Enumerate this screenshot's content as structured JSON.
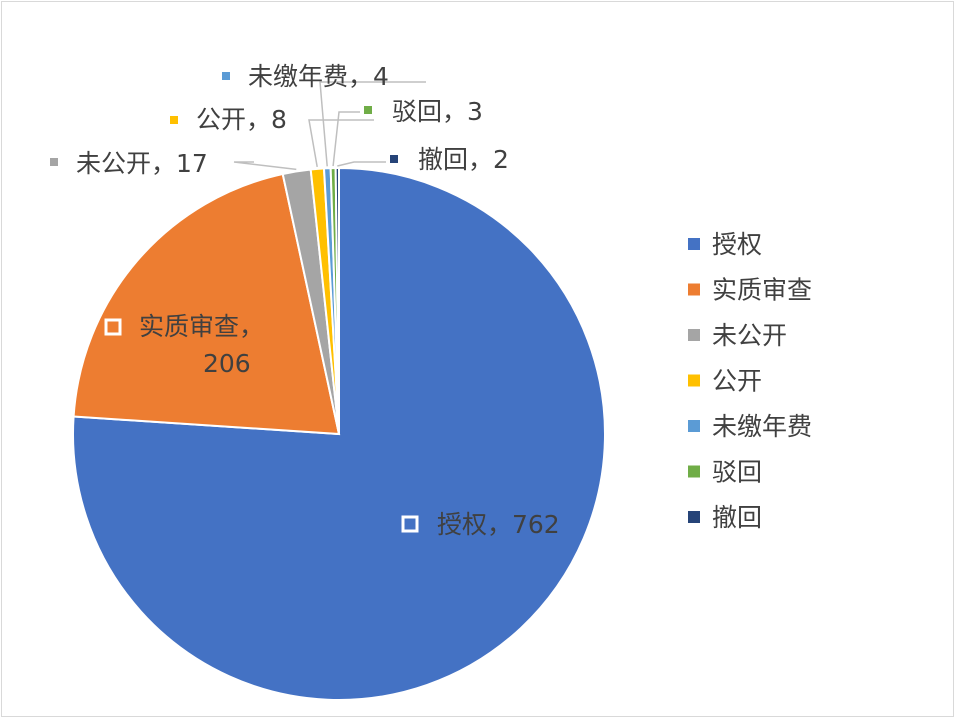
{
  "chart_data": {
    "type": "pie",
    "title": "",
    "slices": [
      {
        "label": "授权",
        "value": 762,
        "color": "#4472C4"
      },
      {
        "label": "实质审查",
        "value": 206,
        "color": "#ED7D31"
      },
      {
        "label": "未公开",
        "value": 17,
        "color": "#A5A5A5"
      },
      {
        "label": "公开",
        "value": 8,
        "color": "#FFC000"
      },
      {
        "label": "未缴年费",
        "value": 4,
        "color": "#5B9BD5"
      },
      {
        "label": "驳回",
        "value": 3,
        "color": "#70AD47"
      },
      {
        "label": "撤回",
        "value": 2,
        "color": "#264478"
      }
    ],
    "legend": {
      "position": "right",
      "entries": [
        "授权",
        "实质审查",
        "未公开",
        "公开",
        "未缴年费",
        "驳回",
        "撤回"
      ]
    },
    "data_labels": [
      {
        "text": "授权，762"
      },
      {
        "text": "实质审查，206"
      },
      {
        "text": "未公开，17"
      },
      {
        "text": "公开，8"
      },
      {
        "text": "未缴年费，4"
      },
      {
        "text": "驳回，3"
      },
      {
        "text": "撤回，2"
      }
    ]
  }
}
